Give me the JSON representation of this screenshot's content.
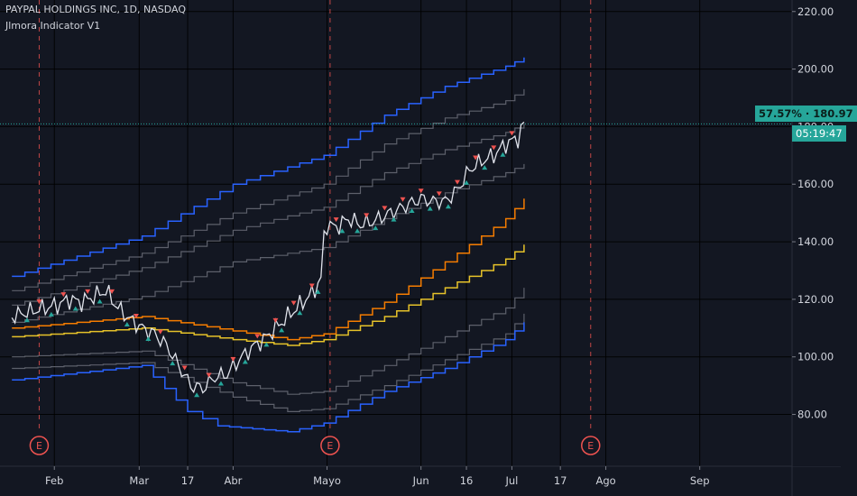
{
  "header": {
    "title": "PAYPAL HOLDINGS INC, 1D, NASDAQ",
    "indicator": "Jlmora Indicator V1"
  },
  "price_axis": {
    "ticks": [
      "220.00",
      "200.00",
      "180.00",
      "160.00",
      "140.00",
      "120.00",
      "100.00",
      "80.00"
    ],
    "last_price_label": "57.57% · 180.97",
    "countdown": "05:19:47"
  },
  "time_axis": {
    "labels": [
      "Feb",
      "Mar",
      "17",
      "Abr",
      "Mayo",
      "Jun",
      "16",
      "Jul",
      "17",
      "Ago",
      "Sep"
    ]
  },
  "earnings_marker": "E",
  "colors": {
    "background": "#131722",
    "price_line": "#e0e3eb",
    "blue_band": "#2962ff",
    "orange_band": "#f57c00",
    "yellow_band": "#e6c229",
    "gray_band": "#5d606b",
    "last_price": "#26a69a",
    "up_marker": "#26a69a",
    "down_marker": "#ef5350",
    "earnings": "#ef5350"
  },
  "chart_data": {
    "type": "line",
    "symbol": "PAYPAL HOLDINGS INC",
    "interval": "1D",
    "exchange": "NASDAQ",
    "ylim": [
      62,
      224
    ],
    "x_ticks": [
      "Feb",
      "Mar",
      "17",
      "Abr",
      "Mayo",
      "Jun",
      "16",
      "Jul",
      "17",
      "Ago",
      "Sep"
    ],
    "x_tick_days": [
      31,
      59,
      75,
      90,
      121,
      152,
      167,
      182,
      198,
      213,
      244
    ],
    "x_range_days": [
      17,
      262
    ],
    "earnings_days": [
      26,
      122,
      208
    ],
    "last_price": 180.97,
    "last_price_pct": "57.57%",
    "series": [
      {
        "name": "price",
        "x": [
          17,
          20,
          24,
          28,
          32,
          36,
          40,
          44,
          48,
          52,
          56,
          60,
          64,
          68,
          72,
          76,
          80,
          84,
          88,
          92,
          96,
          100,
          104,
          108,
          112,
          116,
          119,
          120,
          121,
          124,
          128,
          132,
          136,
          140,
          144,
          148,
          152,
          156,
          160,
          164,
          168,
          172,
          176,
          180,
          184,
          186
        ],
        "values": [
          114,
          115,
          116,
          117,
          118,
          120,
          119,
          121,
          123,
          117,
          113,
          110,
          108,
          104,
          97,
          90,
          89,
          93,
          94,
          99,
          103,
          106,
          110,
          114,
          118,
          122,
          127,
          142,
          146,
          145,
          148,
          146,
          147,
          149,
          151,
          153,
          155,
          154,
          154,
          158,
          165,
          168,
          170,
          174,
          176,
          181
        ]
      },
      {
        "name": "upper-blue",
        "x": [
          17,
          60,
          90,
          108,
          120,
          140,
          160,
          180,
          186
        ],
        "values": [
          128,
          142,
          160,
          166,
          170,
          184,
          194,
          201,
          204
        ]
      },
      {
        "name": "upper-gray-1",
        "x": [
          17,
          60,
          90,
          108,
          120,
          140,
          160,
          180,
          186
        ],
        "values": [
          123,
          136,
          150,
          156,
          160,
          174,
          183,
          189,
          193
        ]
      },
      {
        "name": "upper-gray-2",
        "x": [
          17,
          60,
          90,
          108,
          120,
          140,
          160,
          180,
          186
        ],
        "values": [
          118,
          131,
          144,
          149,
          152,
          164,
          172,
          178,
          181
        ]
      },
      {
        "name": "mid-gray",
        "x": [
          17,
          60,
          90,
          108,
          120,
          140,
          160,
          180,
          186
        ],
        "values": [
          112,
          121,
          133,
          136,
          138,
          148,
          157,
          164,
          167
        ]
      },
      {
        "name": "orange",
        "x": [
          17,
          60,
          90,
          108,
          120,
          140,
          160,
          180,
          186
        ],
        "values": [
          110,
          114,
          109,
          106,
          108,
          119,
          133,
          148,
          155
        ]
      },
      {
        "name": "yellow",
        "x": [
          17,
          60,
          90,
          108,
          120,
          140,
          160,
          180,
          186
        ],
        "values": [
          107,
          110,
          106,
          104,
          106,
          114,
          124,
          134,
          139
        ]
      },
      {
        "name": "lower-gray-1",
        "x": [
          17,
          60,
          90,
          108,
          120,
          140,
          160,
          180,
          186
        ],
        "values": [
          100,
          102,
          91,
          87,
          88,
          97,
          107,
          117,
          124
        ]
      },
      {
        "name": "lower-gray-2",
        "x": [
          17,
          60,
          90,
          108,
          120,
          140,
          160,
          180,
          186
        ],
        "values": [
          96,
          98,
          86,
          81,
          82,
          90,
          99,
          108,
          115
        ]
      },
      {
        "name": "lower-blue",
        "x": [
          17,
          60,
          75,
          85,
          108,
          120,
          140,
          160,
          180,
          186
        ],
        "values": [
          92,
          97,
          81,
          76,
          74,
          77,
          88,
          96,
          106,
          112
        ]
      }
    ],
    "signals": {
      "up_x": [
        22,
        30,
        38,
        46,
        55,
        62,
        70,
        78,
        86,
        94,
        101,
        106,
        112,
        118,
        126,
        131,
        137,
        143,
        149,
        155,
        161,
        167,
        173,
        179
      ],
      "down_x": [
        26,
        34,
        42,
        50,
        58,
        66,
        74,
        82,
        90,
        98,
        104,
        110,
        116,
        124,
        134,
        140,
        146,
        152,
        158,
        164,
        170,
        176,
        182
      ]
    }
  }
}
